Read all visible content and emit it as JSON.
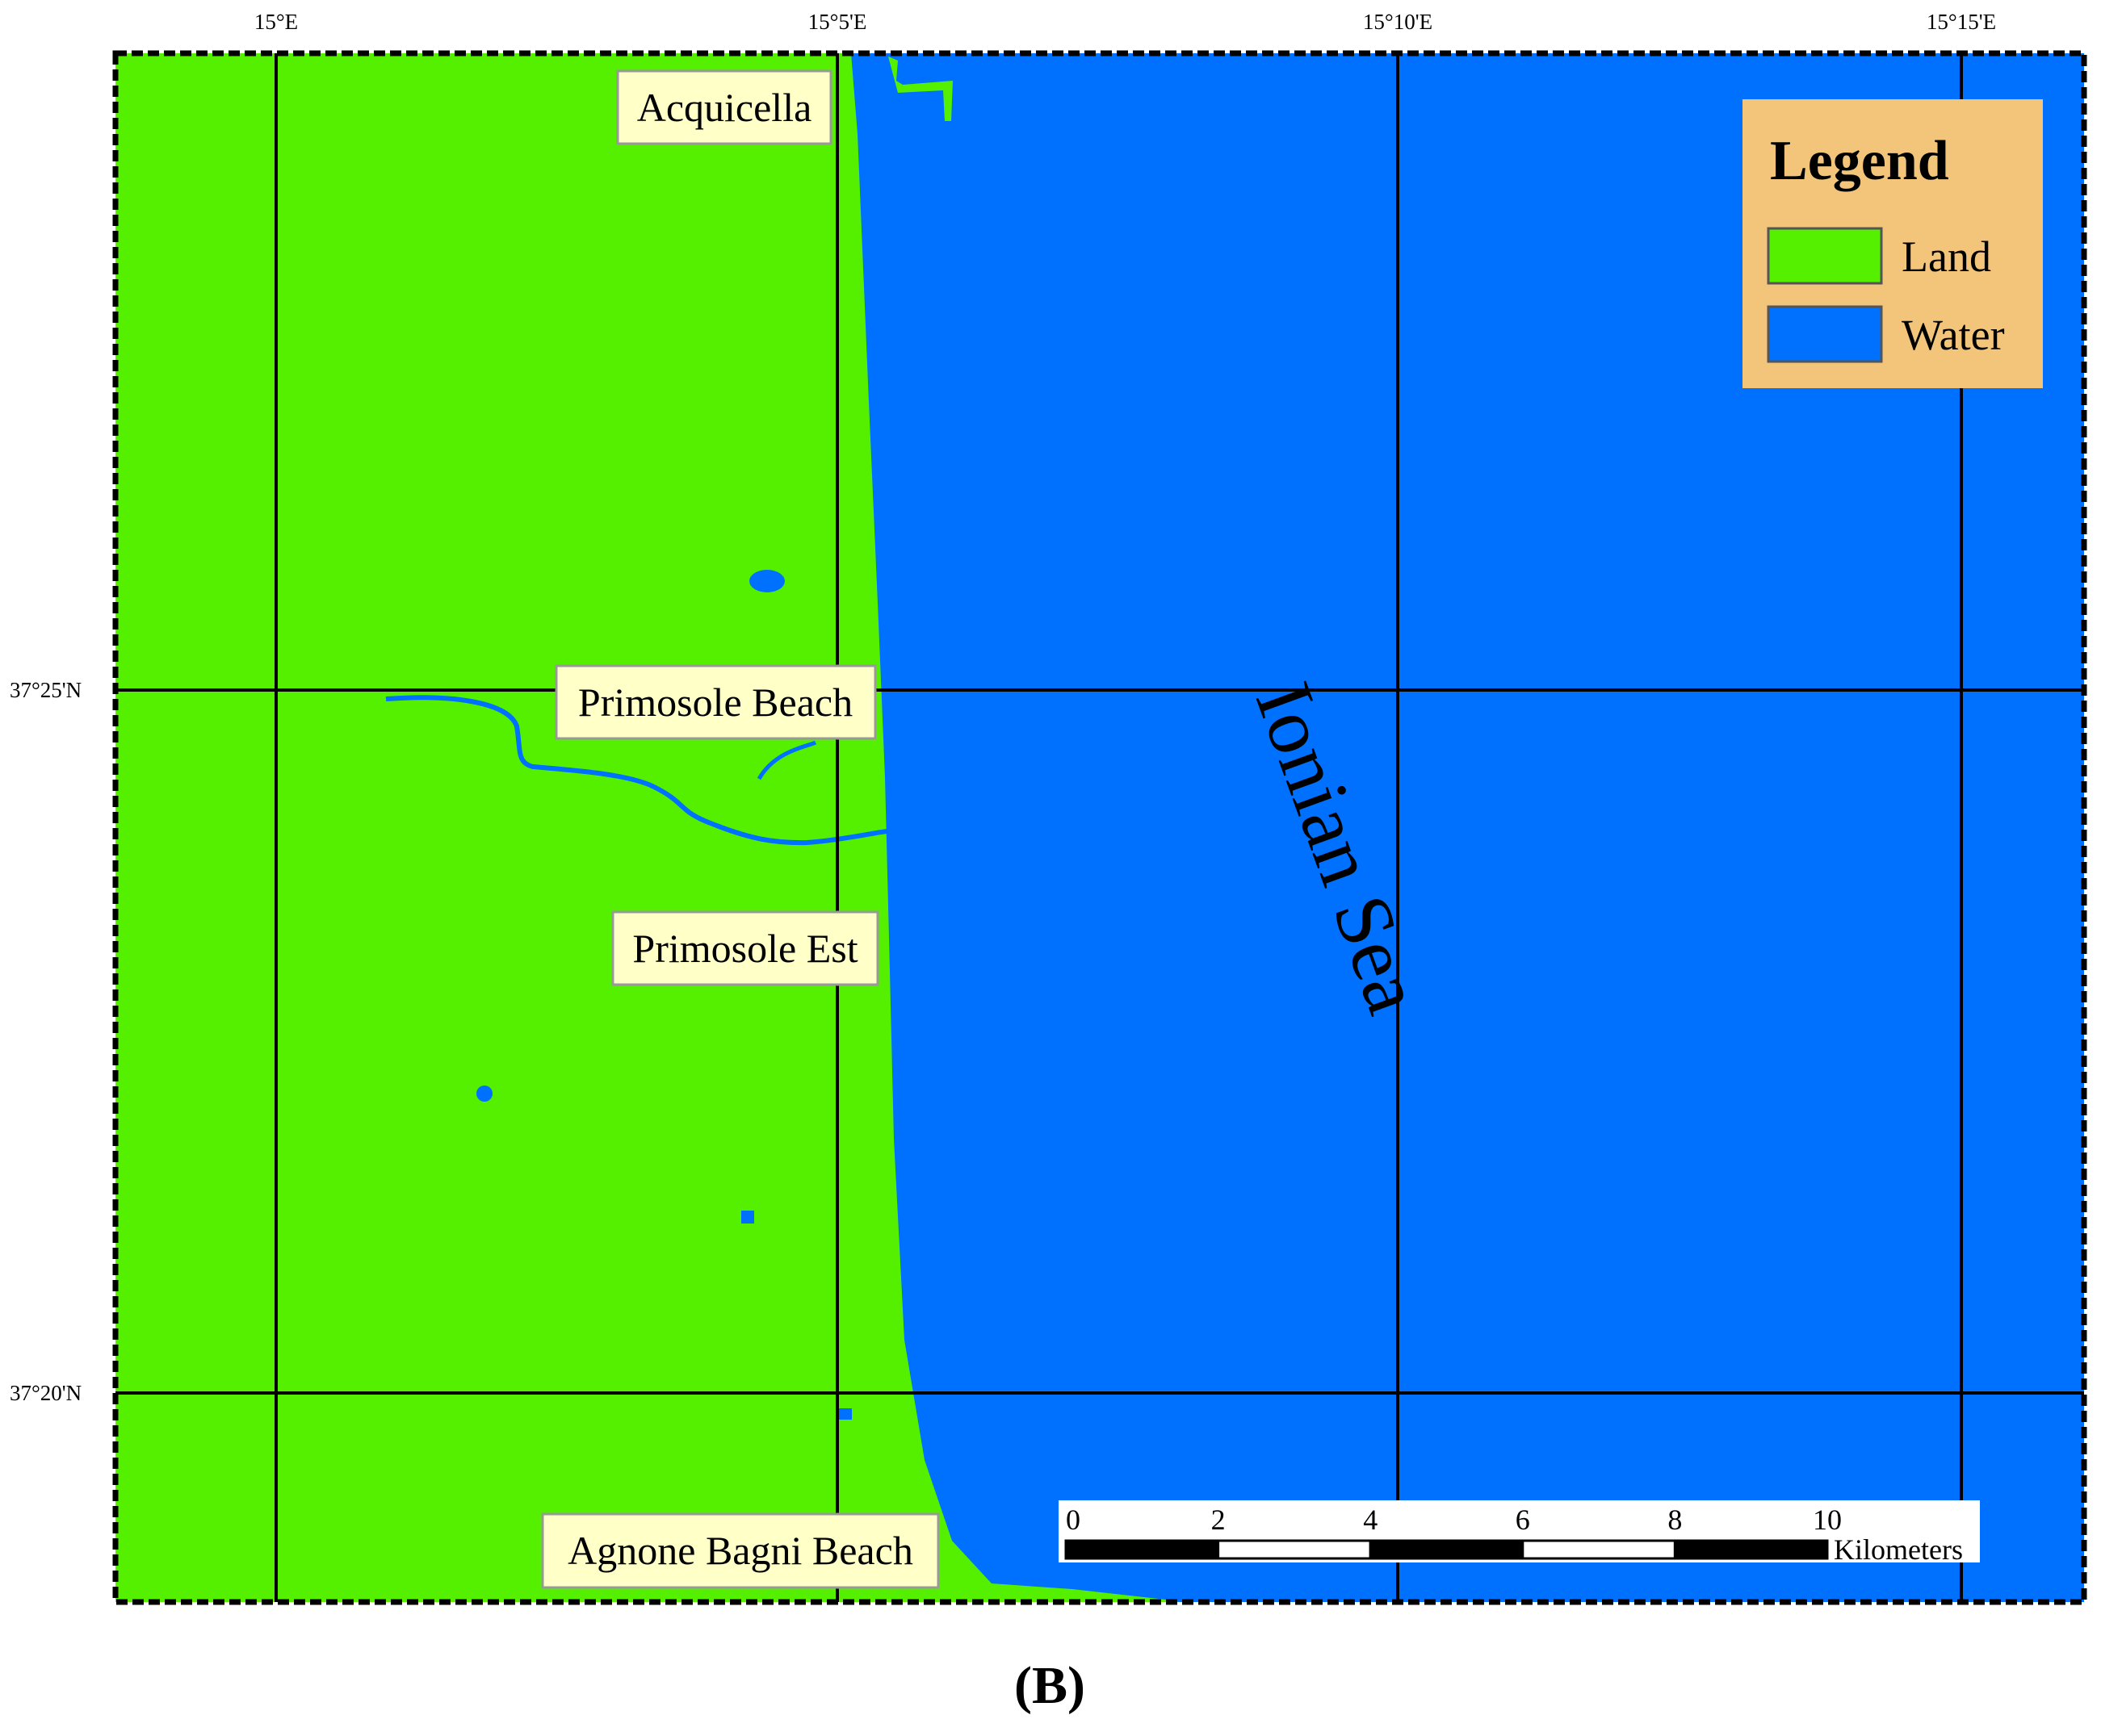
{
  "top_coordinates": [
    "15°E",
    "15°5'E",
    "15°10'E",
    "15°15'E"
  ],
  "left_coordinates": [
    "37°25'N",
    "37°20'N"
  ],
  "places": [
    "Acquicella",
    "Primosole Beach",
    "Primosole Est",
    "Agnone Bagni Beach"
  ],
  "sea_label": "Ionian Sea",
  "legend": {
    "title": "Legend",
    "items": [
      "Land",
      "Water"
    ]
  },
  "scale_bar": {
    "ticks": [
      "0",
      "2",
      "4",
      "6",
      "8",
      "10"
    ],
    "unit": "Kilometers"
  },
  "caption": "(B)"
}
